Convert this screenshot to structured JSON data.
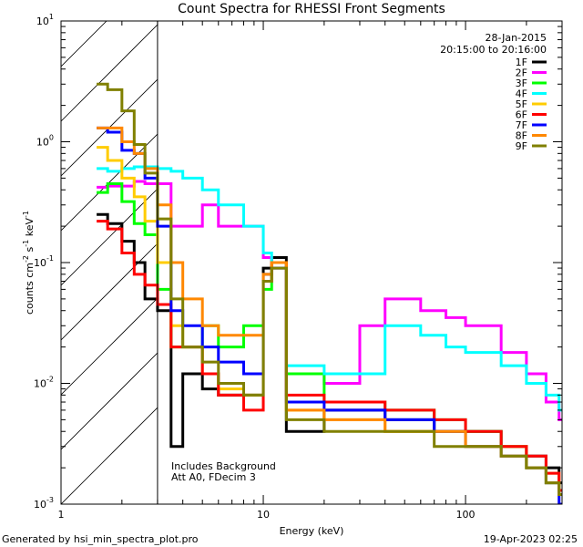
{
  "chart_data": {
    "type": "line",
    "title": "Count Spectra for RHESSI Front Segments",
    "xlabel": "Energy (keV)",
    "ylabel_parts": [
      "counts cm",
      "-2",
      " s",
      "-1",
      " keV",
      "-1"
    ],
    "xscale": "log",
    "yscale": "log",
    "xlim": [
      1,
      300
    ],
    "ylim": [
      0.001,
      10
    ],
    "x_ticks": [
      {
        "v": 1,
        "t": "1"
      },
      {
        "v": 10,
        "t": "10"
      },
      {
        "v": 100,
        "t": "100"
      }
    ],
    "y_ticks": [
      {
        "v": 0.001,
        "base": "10",
        "exp": "-3"
      },
      {
        "v": 0.01,
        "base": "10",
        "exp": "-2"
      },
      {
        "v": 0.1,
        "base": "10",
        "exp": "-1"
      },
      {
        "v": 1,
        "base": "10",
        "exp": "0"
      },
      {
        "v": 10,
        "base": "10",
        "exp": "1"
      }
    ],
    "date": "28-Jan-2015",
    "time_range": "20:15:00 to 20:16:00",
    "attenuator_threshold_keV": 3,
    "annotations": [
      "Includes Background",
      "Att A0, FDecim 3"
    ],
    "legend_position": "top-right",
    "series": [
      {
        "name": "1F",
        "color": "#000000",
        "energy": [
          1.5,
          1.7,
          2.0,
          2.3,
          2.6,
          3.0,
          3.5,
          4.0,
          5.0,
          6.0,
          8.0,
          10.0,
          11.0,
          13.0,
          20.0,
          40.0,
          70.0,
          100.0,
          150.0,
          200.0,
          250.0,
          290.0
        ],
        "values": [
          0.25,
          0.21,
          0.15,
          0.1,
          0.05,
          0.04,
          0.003,
          0.012,
          0.009,
          0.008,
          0.008,
          0.09,
          0.11,
          0.004,
          0.006,
          0.005,
          0.004,
          0.004,
          0.003,
          0.0025,
          0.002,
          0.0015
        ]
      },
      {
        "name": "2F",
        "color": "#ff00ff",
        "energy": [
          1.5,
          1.7,
          2.0,
          2.3,
          2.6,
          3.0,
          3.5,
          4.0,
          5.0,
          6.0,
          8.0,
          10.0,
          11.0,
          13.0,
          20.0,
          30.0,
          40.0,
          60.0,
          80.0,
          100.0,
          150.0,
          200.0,
          250.0,
          290.0
        ],
        "values": [
          0.42,
          0.43,
          0.43,
          0.47,
          0.45,
          0.45,
          0.2,
          0.2,
          0.3,
          0.2,
          0.2,
          0.11,
          0.1,
          0.012,
          0.01,
          0.03,
          0.05,
          0.04,
          0.035,
          0.03,
          0.018,
          0.012,
          0.007,
          0.005
        ]
      },
      {
        "name": "3F",
        "color": "#00ff00",
        "energy": [
          1.5,
          1.7,
          2.0,
          2.3,
          2.6,
          3.0,
          3.5,
          4.0,
          5.0,
          6.0,
          8.0,
          10.0,
          11.0,
          13.0,
          20.0,
          40.0,
          70.0,
          100.0,
          150.0,
          200.0,
          250.0,
          290.0
        ],
        "values": [
          0.38,
          0.45,
          0.32,
          0.21,
          0.17,
          0.06,
          0.02,
          0.02,
          0.03,
          0.02,
          0.03,
          0.06,
          0.1,
          0.012,
          0.007,
          0.006,
          0.005,
          0.004,
          0.003,
          0.002,
          0.0015,
          0.0012
        ]
      },
      {
        "name": "4F",
        "color": "#00ffff",
        "energy": [
          1.5,
          1.7,
          2.0,
          2.3,
          2.6,
          3.0,
          3.5,
          4.0,
          5.0,
          6.0,
          8.0,
          10.0,
          11.0,
          13.0,
          20.0,
          40.0,
          60.0,
          80.0,
          100.0,
          150.0,
          200.0,
          250.0,
          290.0
        ],
        "values": [
          0.6,
          0.57,
          0.6,
          0.62,
          0.62,
          0.6,
          0.57,
          0.5,
          0.4,
          0.3,
          0.2,
          0.12,
          0.1,
          0.014,
          0.012,
          0.03,
          0.025,
          0.02,
          0.018,
          0.014,
          0.01,
          0.008,
          0.006
        ]
      },
      {
        "name": "5F",
        "color": "#ffcc00",
        "energy": [
          1.5,
          1.7,
          2.0,
          2.3,
          2.6,
          3.0,
          3.5,
          4.0,
          5.0,
          6.0,
          8.0,
          10.0,
          11.0,
          13.0,
          20.0,
          40.0,
          70.0,
          100.0,
          150.0,
          200.0,
          250.0,
          290.0
        ],
        "values": [
          0.9,
          0.7,
          0.5,
          0.35,
          0.22,
          0.1,
          0.03,
          0.02,
          0.012,
          0.009,
          0.008,
          0.08,
          0.1,
          0.006,
          0.005,
          0.004,
          0.004,
          0.003,
          0.003,
          0.002,
          0.0018,
          0.0012
        ]
      },
      {
        "name": "6F",
        "color": "#ff0000",
        "energy": [
          1.5,
          1.7,
          2.0,
          2.3,
          2.6,
          3.0,
          3.5,
          4.0,
          5.0,
          6.0,
          8.0,
          10.0,
          11.0,
          13.0,
          20.0,
          40.0,
          70.0,
          100.0,
          150.0,
          200.0,
          250.0,
          290.0
        ],
        "values": [
          0.22,
          0.19,
          0.12,
          0.08,
          0.065,
          0.045,
          0.02,
          0.02,
          0.012,
          0.008,
          0.006,
          0.07,
          0.1,
          0.008,
          0.007,
          0.006,
          0.005,
          0.004,
          0.003,
          0.0025,
          0.0018,
          0.0013
        ]
      },
      {
        "name": "7F",
        "color": "#0000ff",
        "energy": [
          1.5,
          1.7,
          2.0,
          2.3,
          2.6,
          3.0,
          3.5,
          4.0,
          5.0,
          6.0,
          8.0,
          10.0,
          11.0,
          13.0,
          20.0,
          40.0,
          70.0,
          100.0,
          150.0,
          200.0,
          250.0,
          290.0
        ],
        "values": [
          1.3,
          1.2,
          0.85,
          0.8,
          0.5,
          0.2,
          0.04,
          0.03,
          0.02,
          0.015,
          0.012,
          0.08,
          0.09,
          0.007,
          0.006,
          0.005,
          0.004,
          0.003,
          0.0025,
          0.002,
          0.0015,
          0.001
        ]
      },
      {
        "name": "8F",
        "color": "#ff8800",
        "energy": [
          1.5,
          1.7,
          2.0,
          2.3,
          2.6,
          3.0,
          3.5,
          4.0,
          5.0,
          6.0,
          8.0,
          10.0,
          11.0,
          13.0,
          20.0,
          40.0,
          70.0,
          100.0,
          150.0,
          200.0,
          250.0,
          290.0
        ],
        "values": [
          1.3,
          1.3,
          1.0,
          0.8,
          0.6,
          0.3,
          0.1,
          0.05,
          0.03,
          0.025,
          0.025,
          0.08,
          0.1,
          0.006,
          0.005,
          0.004,
          0.004,
          0.003,
          0.0025,
          0.002,
          0.0015,
          0.0012
        ]
      },
      {
        "name": "9F",
        "color": "#808000",
        "energy": [
          1.5,
          1.7,
          2.0,
          2.3,
          2.6,
          3.0,
          3.5,
          4.0,
          5.0,
          6.0,
          8.0,
          10.0,
          11.0,
          13.0,
          20.0,
          40.0,
          70.0,
          100.0,
          150.0,
          200.0,
          250.0,
          290.0
        ],
        "values": [
          3.0,
          2.7,
          1.8,
          0.95,
          0.55,
          0.23,
          0.05,
          0.02,
          0.015,
          0.01,
          0.008,
          0.07,
          0.09,
          0.005,
          0.004,
          0.004,
          0.003,
          0.003,
          0.0025,
          0.002,
          0.0015,
          0.0012
        ]
      }
    ]
  },
  "footer": {
    "left": "Generated by hsi_min_spectra_plot.pro",
    "right": "19-Apr-2023 02:25"
  }
}
